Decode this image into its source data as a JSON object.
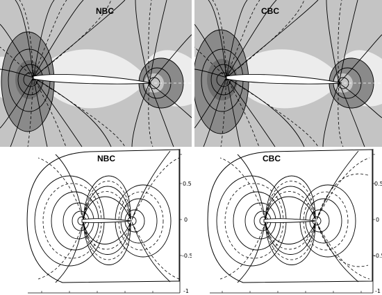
{
  "panels": [
    {
      "title": "NBC",
      "style": "shaded"
    },
    {
      "title": "CBC",
      "style": "shaded"
    },
    {
      "title": "NBC",
      "style": "lines",
      "ticks": [
        "0.5",
        "0",
        "-0.5",
        "-1"
      ]
    },
    {
      "title": "CBC",
      "style": "lines",
      "ticks": [
        "0.5",
        "0",
        "-0.5",
        "-1"
      ]
    }
  ],
  "colors": {
    "light": "#ececec",
    "mid": "#c4c4c4",
    "dark": "#8a8a8a",
    "darker": "#6e6e6e",
    "line": "#000000"
  }
}
